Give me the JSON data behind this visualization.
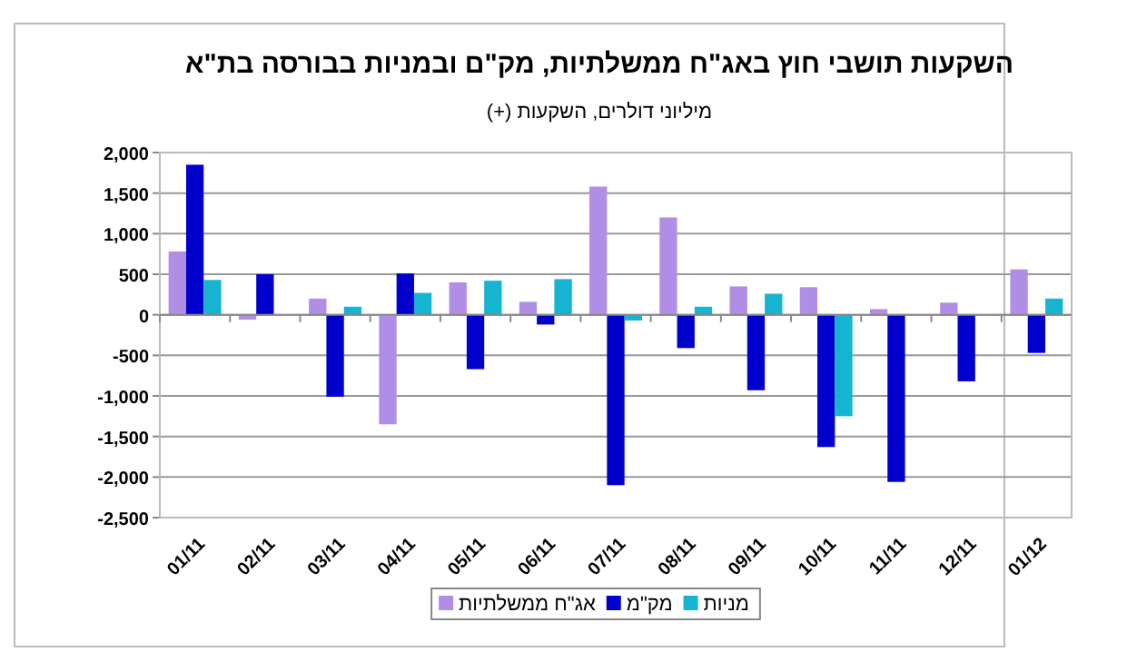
{
  "chart_data": {
    "type": "bar",
    "title": "השקעות תושבי חוץ באג\"ח ממשלתיות, מק\"ם ובמניות בבורסה בת\"א",
    "subtitle": "מיליוני דולרים, השקעות (+)",
    "categories": [
      "01/11",
      "02/11",
      "03/11",
      "04/11",
      "05/11",
      "06/11",
      "07/11",
      "08/11",
      "09/11",
      "10/11",
      "11/11",
      "12/11",
      "01/12"
    ],
    "series": [
      {
        "name": "אג\"ח ממשלתיות",
        "color": "#b08ee6",
        "values": [
          780,
          -60,
          200,
          -1350,
          400,
          160,
          1580,
          1200,
          350,
          340,
          70,
          150,
          560
        ]
      },
      {
        "name": "מק\"מ",
        "color": "#0000cc",
        "values": [
          1850,
          500,
          -1010,
          510,
          -670,
          -120,
          -2100,
          -410,
          -930,
          -1630,
          -2060,
          -820,
          -470
        ]
      },
      {
        "name": "מניות",
        "color": "#16b4d0",
        "values": [
          430,
          null,
          100,
          270,
          420,
          440,
          -70,
          100,
          260,
          -1250,
          null,
          null,
          200
        ]
      }
    ],
    "ylim": [
      -2500,
      2000
    ],
    "yticks": [
      {
        "value": -2500,
        "label": "-2,500"
      },
      {
        "value": -2000,
        "label": "-2,000"
      },
      {
        "value": -1500,
        "label": "-1,500"
      },
      {
        "value": -1000,
        "label": "-1,000"
      },
      -500,
      0,
      500,
      {
        "value": 1000,
        "label": "1,000"
      },
      {
        "value": 1500,
        "label": "1,500"
      },
      {
        "value": 2000,
        "label": "2,000"
      }
    ],
    "grid": "y",
    "legend": "bottom"
  }
}
